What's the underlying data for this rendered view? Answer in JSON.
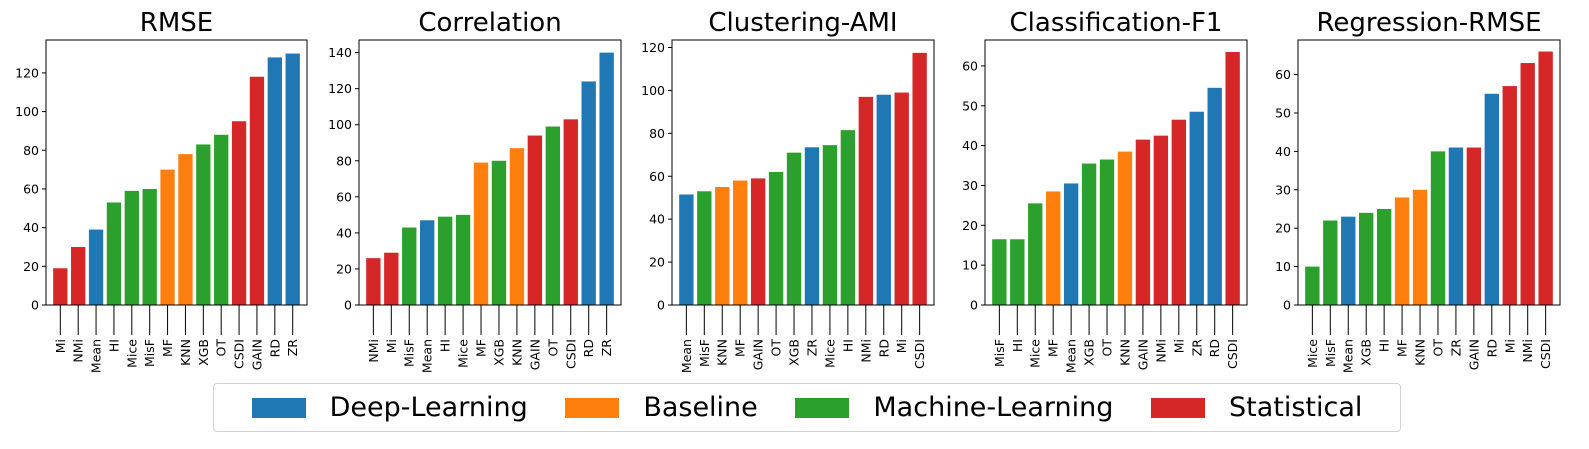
{
  "colors": {
    "Deep-Learning": "#1f77b4",
    "Baseline": "#ff7f0e",
    "Machine-Learning": "#2ca02c",
    "Statistical": "#d62728"
  },
  "legend": {
    "items": [
      {
        "label": "Deep-Learning",
        "color": "#1f77b4"
      },
      {
        "label": "Baseline",
        "color": "#ff7f0e"
      },
      {
        "label": "Machine-Learning",
        "color": "#2ca02c"
      },
      {
        "label": "Statistical",
        "color": "#d62728"
      }
    ]
  },
  "chart_data": [
    {
      "type": "bar",
      "title": "RMSE",
      "ylim": [
        0,
        137
      ],
      "yticks": [
        0,
        20,
        40,
        60,
        80,
        100,
        120
      ],
      "categories": [
        "Mi",
        "NMi",
        "Mean",
        "HI",
        "Mice",
        "MisF",
        "MF",
        "KNN",
        "XGB",
        "OT",
        "CSDI",
        "GAIN",
        "RD",
        "ZR"
      ],
      "values": [
        19,
        30,
        39,
        53,
        59,
        60,
        70,
        78,
        83,
        88,
        95,
        118,
        128,
        130
      ],
      "groups": [
        "Statistical",
        "Statistical",
        "Deep-Learning",
        "Machine-Learning",
        "Machine-Learning",
        "Machine-Learning",
        "Baseline",
        "Baseline",
        "Machine-Learning",
        "Machine-Learning",
        "Statistical",
        "Statistical",
        "Deep-Learning",
        "Deep-Learning"
      ]
    },
    {
      "type": "bar",
      "title": "Correlation",
      "ylim": [
        0,
        147
      ],
      "yticks": [
        0,
        20,
        40,
        60,
        80,
        100,
        120,
        140
      ],
      "categories": [
        "NMi",
        "Mi",
        "MisF",
        "Mean",
        "HI",
        "Mice",
        "MF",
        "XGB",
        "KNN",
        "GAIN",
        "OT",
        "CSDI",
        "RD",
        "ZR"
      ],
      "values": [
        26,
        29,
        43,
        47,
        49,
        50,
        79,
        80,
        87,
        94,
        99,
        103,
        124,
        140
      ],
      "groups": [
        "Statistical",
        "Statistical",
        "Machine-Learning",
        "Deep-Learning",
        "Machine-Learning",
        "Machine-Learning",
        "Baseline",
        "Machine-Learning",
        "Baseline",
        "Statistical",
        "Machine-Learning",
        "Statistical",
        "Deep-Learning",
        "Deep-Learning"
      ]
    },
    {
      "type": "bar",
      "title": "Clustering-AMI",
      "ylim": [
        0,
        123.5
      ],
      "yticks": [
        0,
        20,
        40,
        60,
        80,
        100,
        120
      ],
      "categories": [
        "Mean",
        "MisF",
        "KNN",
        "MF",
        "GAIN",
        "OT",
        "XGB",
        "ZR",
        "Mice",
        "HI",
        "NMi",
        "RD",
        "Mi",
        "CSDI"
      ],
      "values": [
        51.5,
        53,
        55,
        58,
        59,
        62,
        71,
        73.5,
        74.5,
        81.5,
        97,
        98,
        99,
        117.5
      ],
      "groups": [
        "Deep-Learning",
        "Machine-Learning",
        "Baseline",
        "Baseline",
        "Statistical",
        "Machine-Learning",
        "Machine-Learning",
        "Deep-Learning",
        "Machine-Learning",
        "Machine-Learning",
        "Statistical",
        "Deep-Learning",
        "Statistical",
        "Statistical"
      ]
    },
    {
      "type": "bar",
      "title": "Classification-F1",
      "ylim": [
        0,
        66.5
      ],
      "yticks": [
        0,
        10,
        20,
        30,
        40,
        50,
        60
      ],
      "categories": [
        "MisF",
        "HI",
        "Mice",
        "MF",
        "Mean",
        "XGB",
        "OT",
        "KNN",
        "GAIN",
        "NMi",
        "Mi",
        "ZR",
        "RD",
        "CSDI"
      ],
      "values": [
        16.5,
        16.5,
        25.5,
        28.5,
        30.5,
        35.5,
        36.5,
        38.5,
        41.5,
        42.5,
        46.5,
        48.5,
        54.5,
        63.5
      ],
      "groups": [
        "Machine-Learning",
        "Machine-Learning",
        "Machine-Learning",
        "Baseline",
        "Deep-Learning",
        "Machine-Learning",
        "Machine-Learning",
        "Baseline",
        "Statistical",
        "Statistical",
        "Statistical",
        "Deep-Learning",
        "Deep-Learning",
        "Statistical"
      ]
    },
    {
      "type": "bar",
      "title": "Regression-RMSE",
      "ylim": [
        0,
        69
      ],
      "yticks": [
        0,
        10,
        20,
        30,
        40,
        50,
        60
      ],
      "categories": [
        "Mice",
        "MisF",
        "Mean",
        "XGB",
        "HI",
        "MF",
        "KNN",
        "OT",
        "ZR",
        "GAIN",
        "RD",
        "Mi",
        "NMi",
        "CSDI"
      ],
      "values": [
        10,
        22,
        23,
        24,
        25,
        28,
        30,
        40,
        41,
        41,
        55,
        57,
        63,
        66
      ],
      "groups": [
        "Machine-Learning",
        "Machine-Learning",
        "Deep-Learning",
        "Machine-Learning",
        "Machine-Learning",
        "Baseline",
        "Baseline",
        "Machine-Learning",
        "Deep-Learning",
        "Statistical",
        "Deep-Learning",
        "Statistical",
        "Statistical",
        "Statistical"
      ]
    }
  ]
}
